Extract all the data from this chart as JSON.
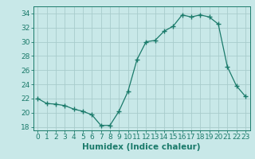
{
  "x": [
    0,
    1,
    2,
    3,
    4,
    5,
    6,
    7,
    8,
    9,
    10,
    11,
    12,
    13,
    14,
    15,
    16,
    17,
    18,
    19,
    20,
    21,
    22,
    23
  ],
  "y": [
    22.0,
    21.3,
    21.2,
    21.0,
    20.5,
    20.2,
    19.7,
    18.2,
    18.2,
    20.2,
    23.0,
    27.5,
    30.0,
    30.2,
    31.5,
    32.2,
    33.8,
    33.5,
    33.8,
    33.5,
    32.5,
    26.5,
    23.8,
    22.3
  ],
  "line_color": "#1a7a6a",
  "marker": "+",
  "marker_size": 4,
  "bg_color": "#c8e8e8",
  "grid_color": "#a8cccc",
  "xlabel": "Humidex (Indice chaleur)",
  "xlim": [
    -0.5,
    23.5
  ],
  "ylim": [
    17.5,
    35.0
  ],
  "yticks": [
    18,
    20,
    22,
    24,
    26,
    28,
    30,
    32,
    34
  ],
  "xticks": [
    0,
    1,
    2,
    3,
    4,
    5,
    6,
    7,
    8,
    9,
    10,
    11,
    12,
    13,
    14,
    15,
    16,
    17,
    18,
    19,
    20,
    21,
    22,
    23
  ],
  "label_fontsize": 7.5,
  "tick_fontsize": 6.5
}
